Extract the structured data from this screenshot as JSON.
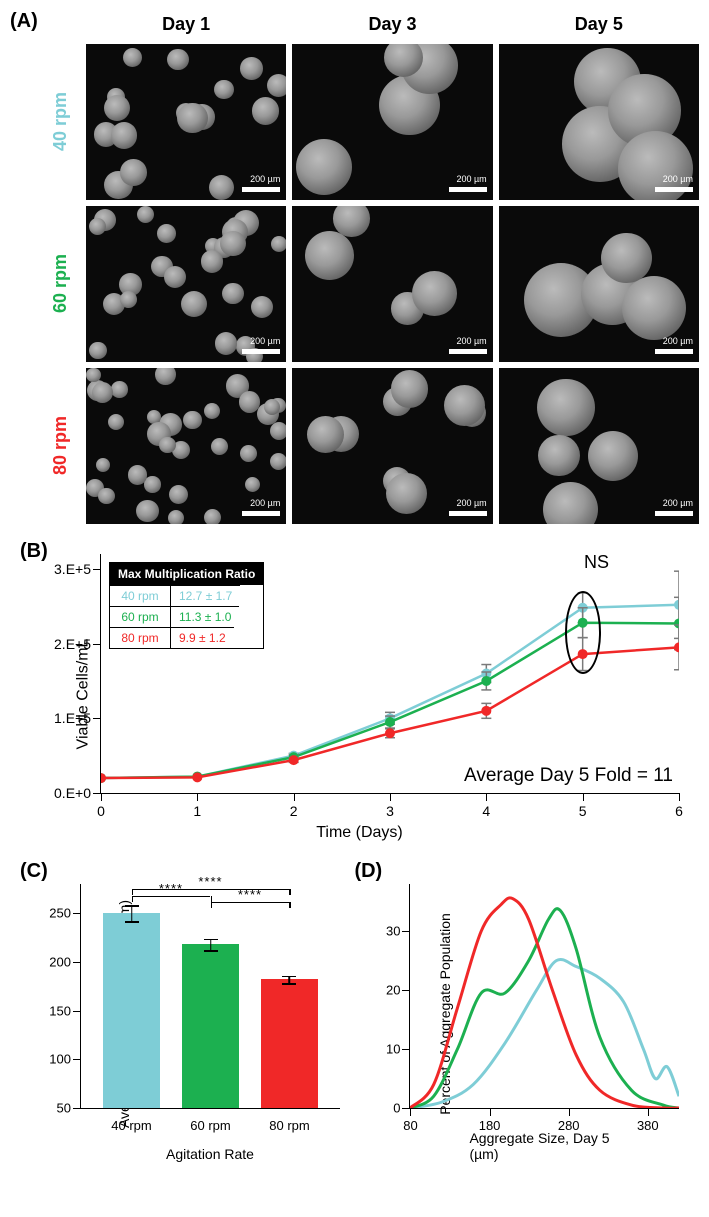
{
  "colors": {
    "rpm40": "#7ecdd6",
    "rpm60": "#1cb050",
    "rpm80": "#f02828",
    "black": "#000000",
    "error_gray": "#7a7a7a"
  },
  "panelA": {
    "label": "(A)",
    "col_headers": [
      "Day 1",
      "Day 3",
      "Day 5"
    ],
    "row_labels": [
      "40 rpm",
      "60 rpm",
      "80 rpm"
    ],
    "scale_text": "200 µm",
    "sphere_sizes": {
      "r1c1": 26,
      "r1c2": 56,
      "r1c3": 90,
      "r2c1": 22,
      "r2c2": 44,
      "r2c3": 64,
      "r3c1": 20,
      "r3c2": 36,
      "r3c3": 48
    }
  },
  "panelB": {
    "label": "(B)",
    "y_axis": {
      "title": "Viable Cells/mL",
      "ticks": [
        0,
        100000.0,
        200000.0,
        300000.0
      ],
      "labels": [
        "0.E+0",
        "1.E+5",
        "2.E+5",
        "3.E+5"
      ],
      "ymax": 320000.0
    },
    "x_axis": {
      "title": "Time (Days)",
      "ticks": [
        0,
        1,
        2,
        3,
        4,
        5,
        6
      ]
    },
    "series": {
      "rpm40": {
        "x": [
          0,
          1,
          2,
          3,
          4,
          5,
          6
        ],
        "y": [
          20000.0,
          22000.0,
          50000.0,
          100000.0,
          160000.0,
          248000.0,
          252000.0
        ],
        "err": [
          0,
          0,
          3000.0,
          8000.0,
          12000.0,
          20000.0,
          45000.0
        ]
      },
      "rpm60": {
        "x": [
          0,
          1,
          2,
          3,
          4,
          5,
          6
        ],
        "y": [
          20000.0,
          22000.0,
          48000.0,
          95000.0,
          150000.0,
          228000.0,
          227000.0
        ],
        "err": [
          0,
          0,
          3000.0,
          8000.0,
          12000.0,
          20000.0,
          35000.0
        ]
      },
      "rpm80": {
        "x": [
          0,
          1,
          2,
          3,
          4,
          5,
          6
        ],
        "y": [
          20000.0,
          21000.0,
          44000.0,
          80000.0,
          110000.0,
          186000.0,
          195000.0
        ],
        "err": [
          0,
          0,
          3000.0,
          6000.0,
          10000.0,
          22000.0,
          30000.0
        ]
      }
    },
    "ns_label": "NS",
    "fold_text": "Average Day 5 Fold = 11",
    "inset": {
      "header": "Max Multiplication Ratio",
      "rows": [
        {
          "rpm": "40 rpm",
          "val": "12.7 ± 1.7",
          "color": "rpm40"
        },
        {
          "rpm": "60 rpm",
          "val": "11.3 ± 1.0",
          "color": "rpm60"
        },
        {
          "rpm": "80 rpm",
          "val": "9.9 ± 1.2",
          "color": "rpm80"
        }
      ]
    }
  },
  "panelC": {
    "label": "(C)",
    "y_axis": {
      "title": "Average Aggregate Size, Day 5 (µm)",
      "ticks": [
        50,
        100,
        150,
        200,
        250
      ],
      "ymax": 280,
      "ymin": 50
    },
    "x_axis": {
      "title": "Agitation Rate",
      "labels": [
        "40 rpm",
        "60 rpm",
        "80 rpm"
      ]
    },
    "bars": [
      {
        "name": "40",
        "value": 250,
        "err": 8,
        "color": "rpm40"
      },
      {
        "name": "60",
        "value": 218,
        "err": 6,
        "color": "rpm60"
      },
      {
        "name": "80",
        "value": 182,
        "err": 4,
        "color": "rpm80"
      }
    ],
    "sig": "****"
  },
  "panelD": {
    "label": "(D)",
    "y_axis": {
      "title": "Percent of Aggregate Population",
      "ticks": [
        0,
        10,
        20,
        30
      ],
      "ymax": 38
    },
    "x_axis": {
      "title": "Aggregate Size, Day 5 (µm)",
      "ticks": [
        80,
        180,
        280,
        380
      ],
      "xmax": 420
    },
    "series": {
      "rpm80": {
        "x": [
          80,
          110,
          140,
          170,
          195,
          210,
          230,
          260,
          290,
          320,
          360,
          400,
          420
        ],
        "y": [
          0,
          4,
          17,
          30,
          34.5,
          35.5,
          32,
          20,
          9,
          3,
          0.5,
          0,
          0
        ]
      },
      "rpm60": {
        "x": [
          80,
          110,
          140,
          170,
          200,
          230,
          255,
          270,
          290,
          320,
          360,
          400,
          420
        ],
        "y": [
          0,
          2,
          10,
          19.5,
          19.5,
          25,
          32,
          33.5,
          27,
          12,
          3,
          0.5,
          0
        ]
      },
      "rpm40": {
        "x": [
          80,
          120,
          160,
          200,
          240,
          265,
          290,
          320,
          350,
          375,
          390,
          405,
          420
        ],
        "y": [
          0,
          1,
          4,
          11,
          20,
          25,
          24,
          22,
          18,
          10,
          5,
          7,
          2
        ]
      }
    }
  }
}
